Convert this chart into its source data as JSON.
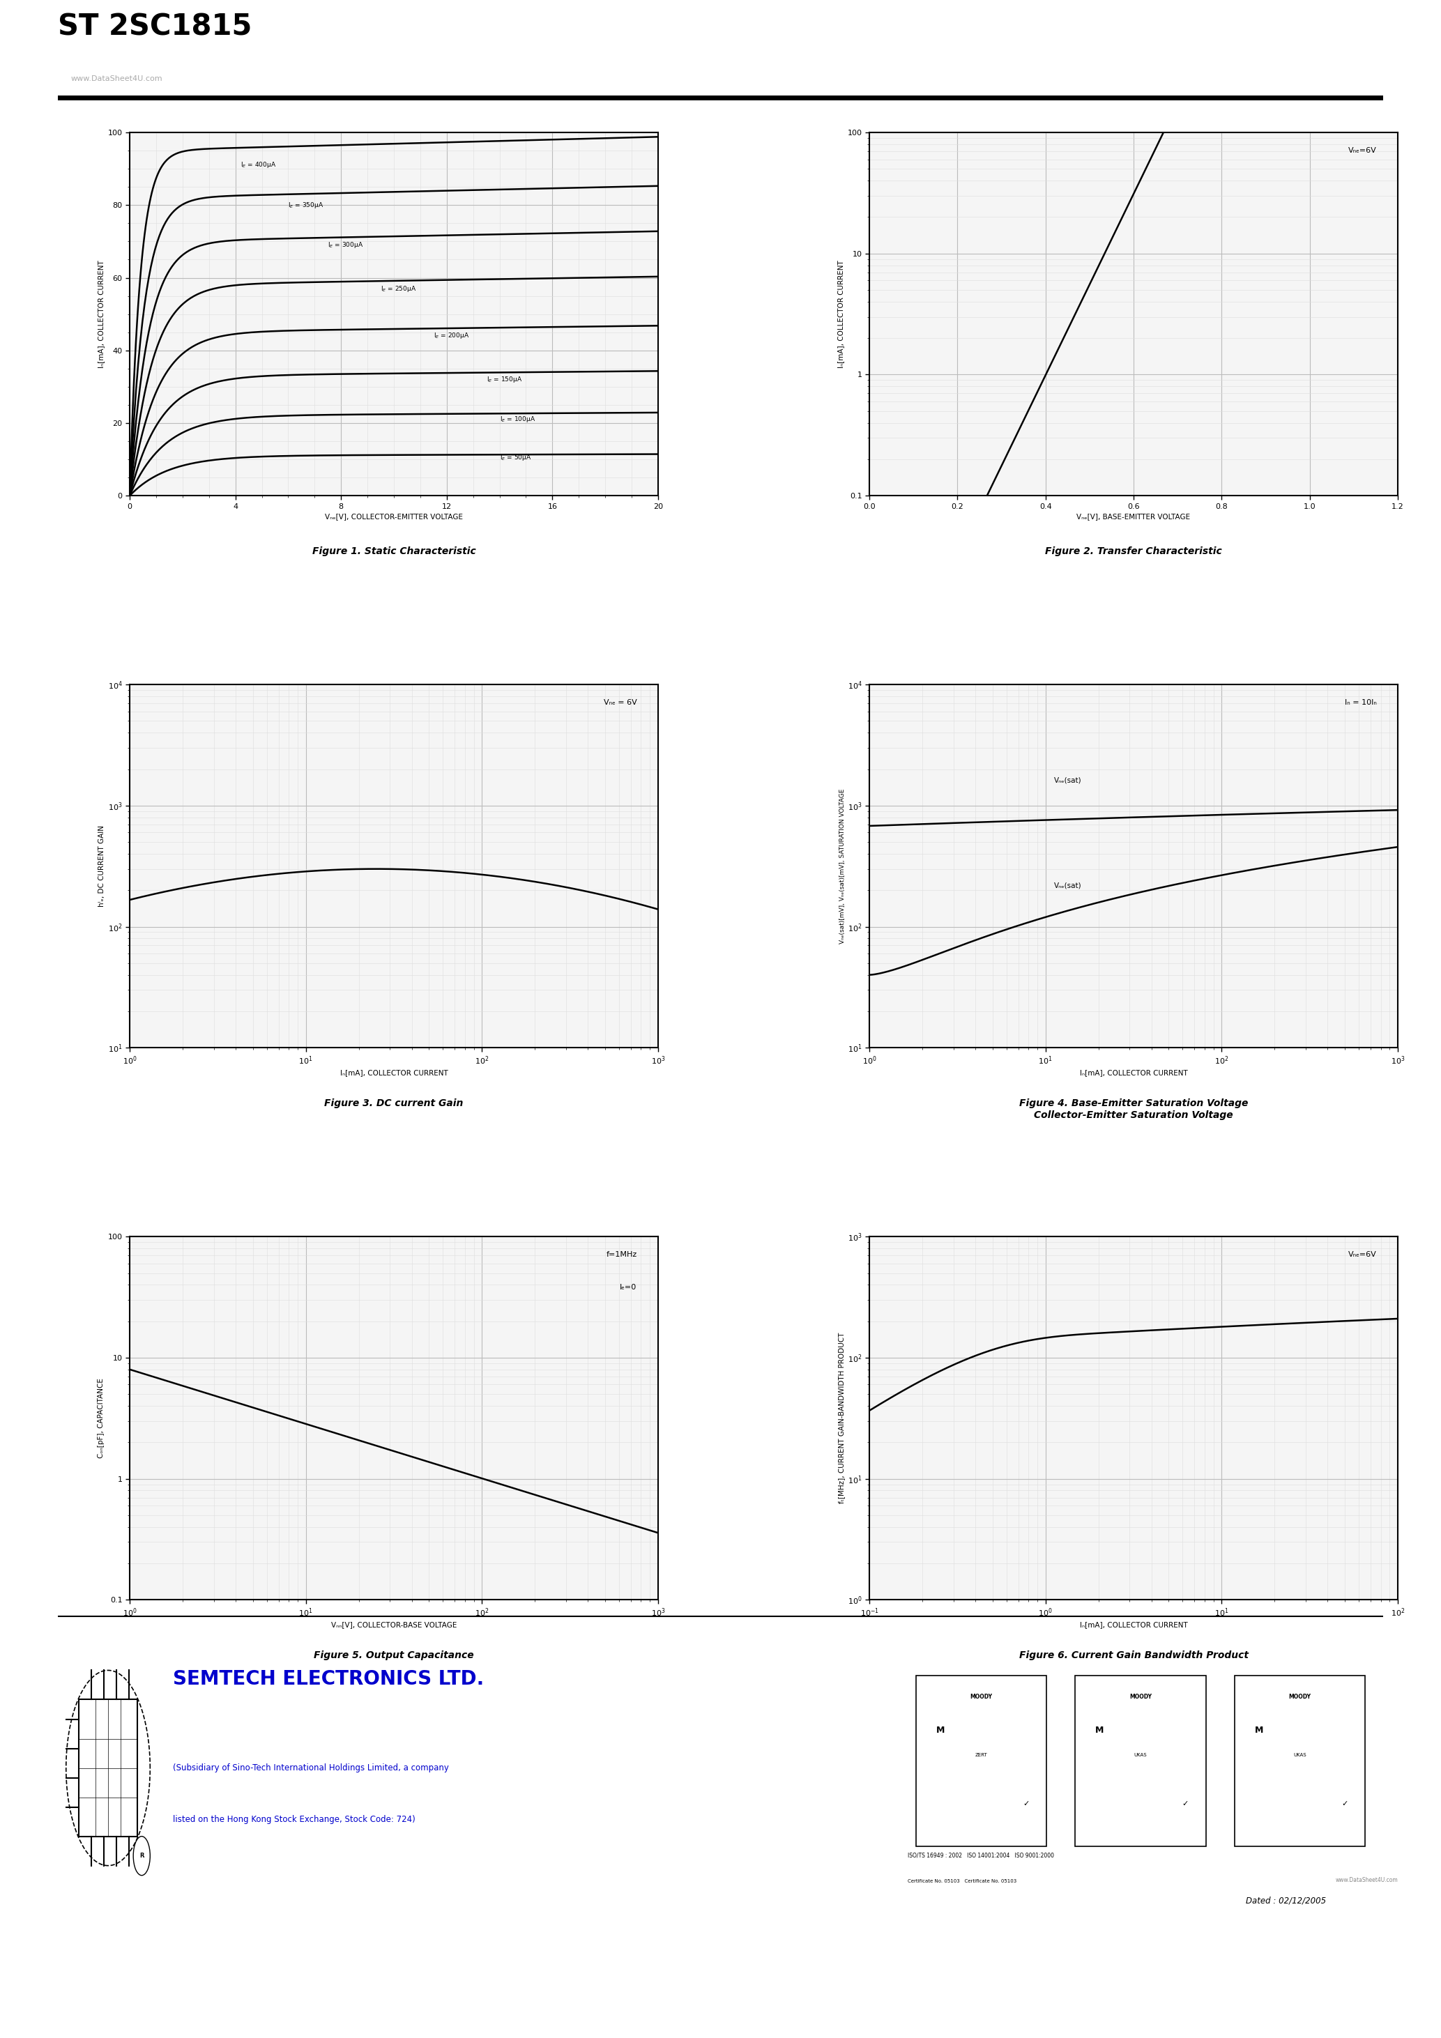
{
  "title": "ST 2SC1815",
  "watermark": "www.DataSheet4U.com",
  "bg_color": "#ffffff",
  "fig1": {
    "caption": "Figure 1. Static Characteristic",
    "xlabel": "Vₙₑ[V], COLLECTOR-EMITTER VOLTAGE",
    "ylabel": "Iₙ[mA], COLLECTOR CURRENT",
    "xlim": [
      0,
      20
    ],
    "ylim": [
      0,
      100
    ],
    "xticks": [
      0,
      4,
      8,
      12,
      16,
      20
    ],
    "yticks": [
      0,
      20,
      40,
      60,
      80,
      100
    ],
    "Isats": [
      95,
      82,
      70,
      58,
      45,
      33,
      22,
      11
    ],
    "labels": [
      "Iₙ = 400μA",
      "Iₙ = 350μA",
      "Iₙ = 300μA",
      "Iₙ = 250μA",
      "Iₙ = 200μA",
      "Iₙ = 150μA",
      "Iₙ = 100μA",
      "Iₙ = 50μA"
    ],
    "label_x_positions": [
      4.5,
      6.5,
      8.5,
      10.5,
      12.5,
      14.5,
      14.5,
      14.5
    ]
  },
  "fig2": {
    "caption": "Figure 2. Transfer Characteristic",
    "xlabel": "Vₙₑ[V], BASE-EMITTER VOLTAGE",
    "ylabel": "Iₙ[mA], COLLECTOR CURRENT",
    "annotation": "Vₙₑ=6V",
    "xlim": [
      0.0,
      1.2
    ],
    "xticks": [
      0.0,
      0.2,
      0.4,
      0.6,
      0.8,
      1.0,
      1.2
    ],
    "ylim": [
      0.1,
      100
    ],
    "yticks": [
      0.1,
      1,
      10,
      100
    ]
  },
  "fig3": {
    "caption": "Figure 3. DC current Gain",
    "xlabel": "Iₙ[mA], COLLECTOR CURRENT",
    "ylabel": "hⁱₑ, DC CURRENT GAIN",
    "annotation": "Vₙₑ = 6V",
    "xlim": [
      1,
      1000
    ],
    "ylim": [
      10,
      10000
    ],
    "yticks": [
      10,
      100,
      1000,
      10000
    ]
  },
  "fig4": {
    "caption": "Figure 4. Base-Emitter Saturation Voltage\nCollector-Emitter Saturation Voltage",
    "xlabel": "Iₙ[mA], COLLECTOR CURRENT",
    "ylabel": "Vₙₑ(sat)[mV], Vₙₑ(sat)[mV], SATURATION VOLTAGE",
    "annotation": "Iₙ = 10Iₙ",
    "xlim": [
      1,
      1000
    ],
    "ylim": [
      10,
      10000
    ],
    "label_vbe": "Vₙₑ(sat)",
    "label_vce": "Vₙₑ(sat)"
  },
  "fig5": {
    "caption": "Figure 5. Output Capacitance",
    "xlabel": "Vₙₙ[V], COLLECTOR-BASE VOLTAGE",
    "ylabel": "Cₒₙ[pF], CAPACITANCE",
    "annotation1": "f=1MHz",
    "annotation2": "Iₑ=0",
    "xlim": [
      1,
      1000
    ],
    "ylim": [
      0.1,
      100
    ]
  },
  "fig6": {
    "caption": "Figure 6. Current Gain Bandwidth Product",
    "xlabel": "Iₙ[mA], COLLECTOR CURRENT",
    "ylabel": "fₜ[MHz], CURRENT GAIN-BANDWIDTH PRODUCT",
    "annotation": "Vₙₑ=6V",
    "xlim": [
      0.1,
      100
    ],
    "ylim": [
      1,
      1000
    ]
  },
  "footer_company": "SEMTECH ELECTRONICS LTD.",
  "footer_sub1": "(Subsidiary of Sino-Tech International Holdings Limited, a company",
  "footer_sub2": "listed on the Hong Kong Stock Exchange, Stock Code: 724)",
  "footer_date": "Dated : 02/12/2005",
  "line_color": "#000000",
  "grid_major_color": "#bbbbbb",
  "grid_minor_color": "#dddddd"
}
